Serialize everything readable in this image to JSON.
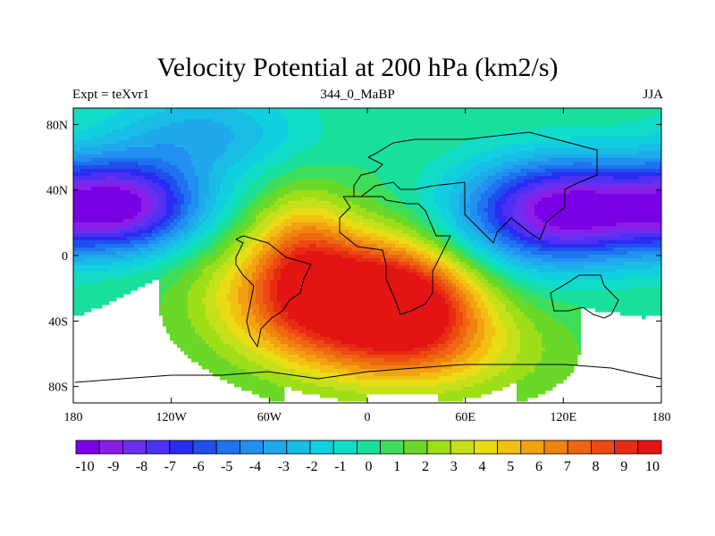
{
  "chart_data": {
    "type": "heatmap",
    "title": "Velocity Potential at 200 hPa (km2/s)",
    "left_string": "Expt = teXvr1",
    "center_string": "344_0_MaBP",
    "right_string": "JJA",
    "x_ticks": [
      "180",
      "120W",
      "60W",
      "0",
      "60E",
      "120E",
      "180"
    ],
    "y_ticks": [
      "80N",
      "40N",
      "0",
      "40S",
      "80S"
    ],
    "xlim": [
      -180,
      180
    ],
    "ylim": [
      -90,
      90
    ],
    "colorbar_labels": [
      "-10",
      "-9",
      "-8",
      "-7",
      "-6",
      "-5",
      "-4",
      "-3",
      "-2",
      "-1",
      "0",
      "1",
      "2",
      "3",
      "4",
      "5",
      "6",
      "7",
      "8",
      "9",
      "10"
    ],
    "colorbar_range": [
      -10.5,
      10.5
    ],
    "colors": [
      "#7a00e6",
      "#8a1ee8",
      "#6b2ff0",
      "#4f30f5",
      "#2b2cf2",
      "#1f50ee",
      "#1f72f0",
      "#2290f0",
      "#1fa8ec",
      "#18bde6",
      "#12cfe0",
      "#10dcc8",
      "#18e09a",
      "#3fde5a",
      "#6ad828",
      "#9ede18",
      "#c5e01a",
      "#e8dc14",
      "#f2c012",
      "#f2a210",
      "#f08210",
      "#ee6610",
      "#ec4a12",
      "#e82c12",
      "#e21414"
    ],
    "centers": [
      {
        "lon": -12,
        "lat": -25,
        "amp": 10.8,
        "sx": 52,
        "sy": 28
      },
      {
        "lon": 28,
        "lat": -32,
        "amp": 4.5,
        "sx": 28,
        "sy": 22
      },
      {
        "lon": -40,
        "lat": 5,
        "amp": 3.2,
        "sx": 20,
        "sy": 28
      },
      {
        "lon": 40,
        "lat": -60,
        "amp": 3,
        "sx": 55,
        "sy": 22
      },
      {
        "lon": -150,
        "lat": 30,
        "amp": -9.8,
        "sx": 35,
        "sy": 20
      },
      {
        "lon": 125,
        "lat": 28,
        "amp": -10.2,
        "sx": 42,
        "sy": 22
      },
      {
        "lon": 75,
        "lat": 10,
        "amp": -2,
        "sx": 40,
        "sy": 30
      },
      {
        "lon": -100,
        "lat": 75,
        "amp": -3.5,
        "sx": 45,
        "sy": 20
      }
    ]
  }
}
